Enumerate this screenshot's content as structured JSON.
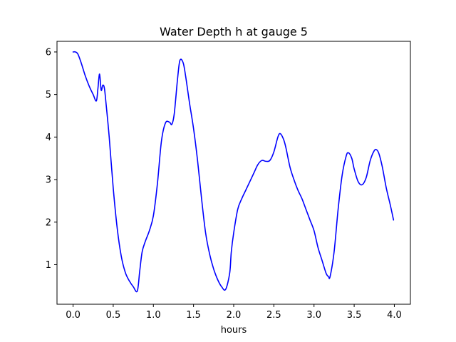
{
  "chart_data": {
    "type": "line",
    "title": "Water Depth h at gauge 5",
    "xlabel": "hours",
    "ylabel": "",
    "xlim": [
      -0.2,
      4.2
    ],
    "ylim": [
      0.07,
      6.25
    ],
    "xticks": [
      0.0,
      0.5,
      1.0,
      1.5,
      2.0,
      2.5,
      3.0,
      3.5,
      4.0
    ],
    "xtick_labels": [
      "0.0",
      "0.5",
      "1.0",
      "1.5",
      "2.0",
      "2.5",
      "3.0",
      "3.5",
      "4.0"
    ],
    "yticks": [
      1,
      2,
      3,
      4,
      5,
      6
    ],
    "ytick_labels": [
      "1",
      "2",
      "3",
      "4",
      "5",
      "6"
    ],
    "grid": false,
    "series": [
      {
        "color": "#0000ff",
        "x": [
          0.0,
          0.03,
          0.06,
          0.1,
          0.15,
          0.2,
          0.25,
          0.29,
          0.31,
          0.33,
          0.35,
          0.37,
          0.39,
          0.41,
          0.45,
          0.5,
          0.55,
          0.6,
          0.65,
          0.7,
          0.75,
          0.8,
          0.83,
          0.86,
          0.9,
          0.95,
          1.0,
          1.05,
          1.1,
          1.15,
          1.2,
          1.23,
          1.26,
          1.3,
          1.33,
          1.37,
          1.4,
          1.45,
          1.5,
          1.55,
          1.6,
          1.65,
          1.7,
          1.75,
          1.8,
          1.85,
          1.9,
          1.95,
          1.97,
          2.0,
          2.05,
          2.1,
          2.15,
          2.2,
          2.25,
          2.3,
          2.35,
          2.4,
          2.45,
          2.5,
          2.55,
          2.58,
          2.62,
          2.65,
          2.7,
          2.75,
          2.8,
          2.85,
          2.9,
          2.95,
          3.0,
          3.05,
          3.1,
          3.15,
          3.18,
          3.2,
          3.25,
          3.3,
          3.35,
          3.4,
          3.43,
          3.47,
          3.5,
          3.55,
          3.6,
          3.65,
          3.7,
          3.75,
          3.78,
          3.81,
          3.85,
          3.9,
          3.95,
          3.99
        ],
        "y": [
          6.0,
          6.0,
          5.95,
          5.75,
          5.45,
          5.2,
          5.0,
          4.85,
          5.15,
          5.48,
          5.1,
          5.22,
          5.15,
          4.8,
          4.0,
          2.8,
          1.85,
          1.2,
          0.82,
          0.62,
          0.48,
          0.38,
          0.85,
          1.3,
          1.55,
          1.8,
          2.15,
          2.9,
          3.9,
          4.33,
          4.35,
          4.3,
          4.55,
          5.35,
          5.8,
          5.75,
          5.45,
          4.8,
          4.2,
          3.45,
          2.55,
          1.75,
          1.25,
          0.9,
          0.65,
          0.48,
          0.42,
          0.8,
          1.3,
          1.75,
          2.3,
          2.55,
          2.75,
          2.95,
          3.15,
          3.35,
          3.45,
          3.43,
          3.45,
          3.65,
          4.0,
          4.08,
          3.95,
          3.75,
          3.3,
          3.0,
          2.75,
          2.55,
          2.3,
          2.05,
          1.8,
          1.4,
          1.1,
          0.8,
          0.72,
          0.72,
          1.3,
          2.3,
          3.1,
          3.55,
          3.63,
          3.5,
          3.25,
          2.95,
          2.88,
          3.05,
          3.45,
          3.68,
          3.7,
          3.6,
          3.3,
          2.8,
          2.4,
          2.05
        ]
      }
    ]
  }
}
